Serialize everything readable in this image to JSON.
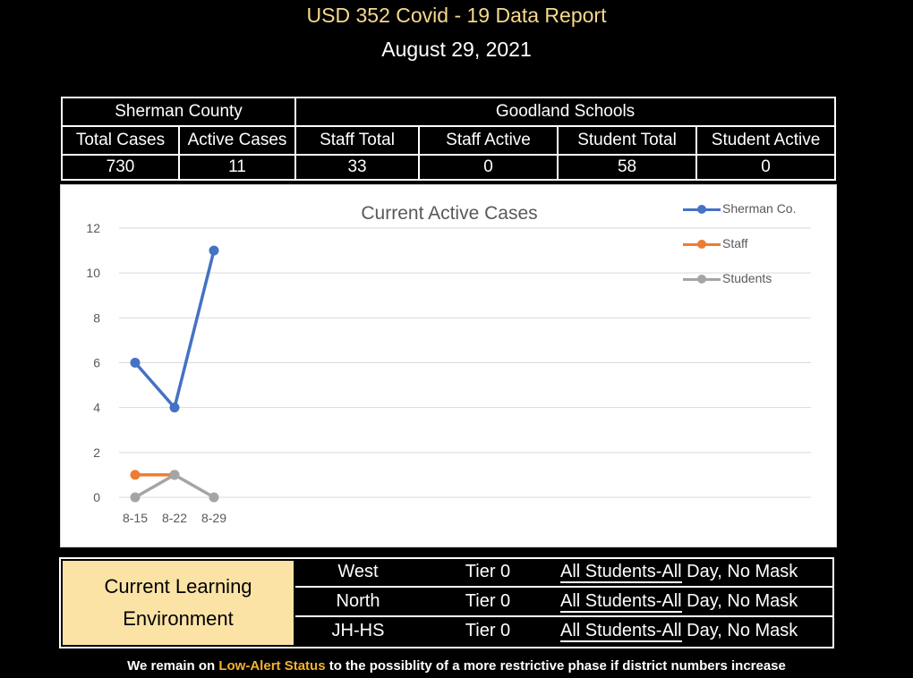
{
  "header": {
    "title": "USD 352 Covid - 19 Data Report",
    "date": "August 29, 2021"
  },
  "stats_table": {
    "group_headers": [
      "Sherman County",
      "Goodland Schools"
    ],
    "column_headers": [
      "Total Cases",
      "Active Cases",
      "Staff Total",
      "Staff Active",
      "Student Total",
      "Student Active"
    ],
    "values": [
      "730",
      "11",
      "33",
      "0",
      "58",
      "0"
    ]
  },
  "chart_data": {
    "type": "line",
    "title": "Current Active Cases",
    "categories": [
      "8-15",
      "8-22",
      "8-29"
    ],
    "ylim": [
      0,
      12
    ],
    "yticks": [
      0,
      2,
      4,
      6,
      8,
      10,
      12
    ],
    "grid": true,
    "legend_position": "top-right",
    "series": [
      {
        "name": "Sherman Co.",
        "values": [
          6,
          4,
          11
        ],
        "color": "#4472c4"
      },
      {
        "name": "Staff",
        "values": [
          1,
          1,
          null
        ],
        "color": "#ed7d31"
      },
      {
        "name": "Students",
        "values": [
          0,
          1,
          0
        ],
        "color": "#a5a5a5"
      }
    ]
  },
  "learning_environment": {
    "label_line1": "Current Learning",
    "label_line2": "Environment",
    "rows": [
      {
        "school": "West",
        "tier": "Tier 0",
        "policy_part1": "All Students-All",
        "policy_part2": " Day, No Mask"
      },
      {
        "school": "North",
        "tier": "Tier 0",
        "policy_part1": "All Students-All",
        "policy_part2": " Day, No Mask"
      },
      {
        "school": "JH-HS",
        "tier": "Tier 0",
        "policy_part1": "All Students-All",
        "policy_part2": " Day, No Mask"
      }
    ]
  },
  "footer": {
    "prefix": "We remain on ",
    "highlight": "Low-Alert Status",
    "suffix": " to the possiblity of a more restrictive phase if district numbers increase"
  }
}
